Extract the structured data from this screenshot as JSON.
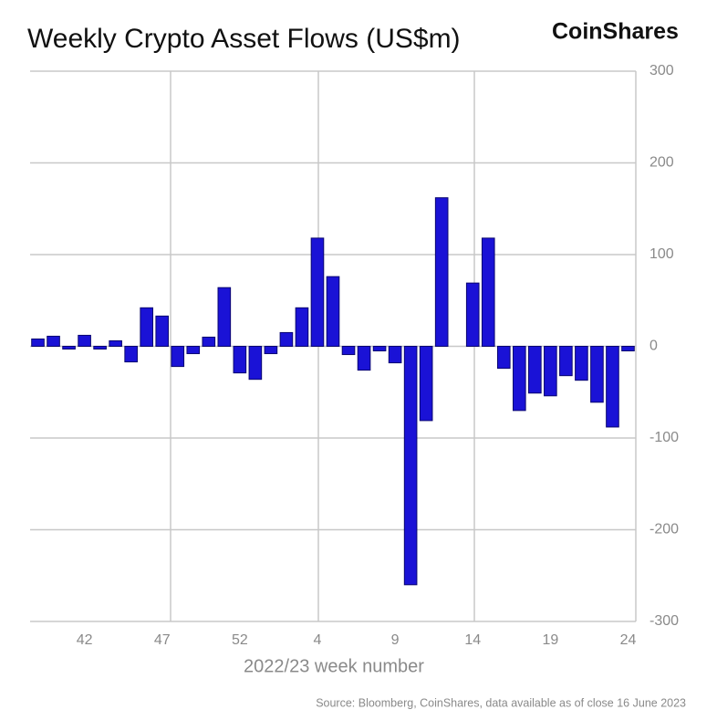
{
  "chart_data": {
    "type": "bar",
    "title": "Weekly Crypto Asset Flows (US$m)",
    "brand": "CoinShares",
    "x_label": "2022/23 week number",
    "source": "Source: Bloomberg, CoinShares, data available as of close 16 June 2023",
    "categories": [
      null,
      null,
      null,
      "42",
      null,
      null,
      null,
      null,
      "47",
      null,
      null,
      null,
      null,
      "52",
      null,
      null,
      null,
      null,
      "4",
      null,
      null,
      null,
      null,
      "9",
      null,
      null,
      null,
      null,
      "14",
      null,
      null,
      null,
      null,
      "19",
      null,
      null,
      null,
      null,
      "24"
    ],
    "values": [
      8,
      11,
      -3,
      12,
      -3,
      6,
      -17,
      42,
      33,
      -22,
      -8,
      10,
      64,
      -29,
      -36,
      -8,
      15,
      42,
      118,
      76,
      -9,
      -26,
      -5,
      -18,
      -260,
      -81,
      162,
      0,
      69,
      118,
      -24,
      -70,
      -51,
      -54,
      -32,
      -37,
      -61,
      -88,
      -5
    ],
    "color": "#1a12d6",
    "ylim": [
      -300,
      300
    ],
    "yticks": [
      -300,
      -200,
      -100,
      0,
      100,
      200,
      300
    ],
    "grid": true
  }
}
